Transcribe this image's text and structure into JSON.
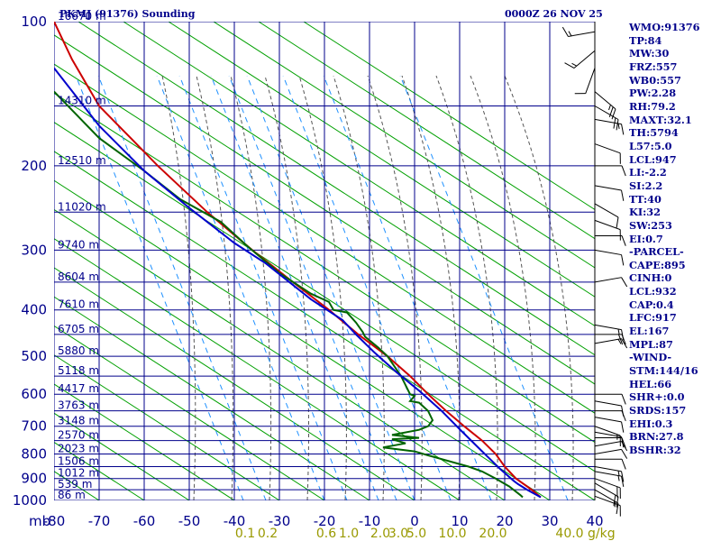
{
  "header": {
    "station_title": "PKMJ (91376) Sounding",
    "date_time": "0000Z 26 NOV 25"
  },
  "indices": [
    "WMO:91376",
    "TP:84",
    "MW:30",
    "FRZ:557",
    "WB0:557",
    "PW:2.28",
    "RH:79.2",
    "MAXT:32.1",
    "TH:5794",
    "L57:5.0",
    "LCL:947",
    "LI:-2.2",
    "SI:2.2",
    "TT:40",
    "KI:32",
    "SW:253",
    "EI:0.7",
    "-PARCEL-",
    "CAPE:895",
    "CINH:0",
    "LCL:932",
    "CAP:0.4",
    "LFC:917",
    "EL:167",
    "MPL:87",
    "-WIND-",
    "STM:144/16",
    "HEL:66",
    "SHR+:0.0",
    "SRDS:157",
    "EHI:0.3",
    "BRN:27.8",
    "BSHR:32"
  ],
  "colors": {
    "grid": "#00008b",
    "dry_adiabat": "#00a000",
    "moist_adiabat": "#555555",
    "mixing_ratio": "#1e90ff",
    "temperature": "#cc0000",
    "dewpoint": "#006400",
    "parcel": "#0000cc",
    "mixing_label": "#999900",
    "wind": "#000000"
  },
  "chart_data": {
    "type": "line",
    "xlim": [
      -80,
      40
    ],
    "ylim": [
      1000,
      100
    ],
    "y_scale": "log",
    "x_ticks": [
      "-80",
      "-70",
      "-60",
      "-50",
      "-40",
      "-30",
      "-20",
      "-10",
      "0",
      "10",
      "20",
      "30",
      "40"
    ],
    "y_ticks": [
      100,
      200,
      300,
      400,
      500,
      600,
      700,
      800,
      900,
      1000
    ],
    "y_tick_labels": [
      "100",
      "200",
      "300",
      "400",
      "500",
      "600",
      "700",
      "800",
      "900",
      "1000"
    ],
    "corner_label": "mb",
    "height_labels": [
      {
        "p": 100,
        "label": "16670 m"
      },
      {
        "p": 150,
        "label": "14310 m"
      },
      {
        "p": 200,
        "label": "12510 m"
      },
      {
        "p": 250,
        "label": "11020 m"
      },
      {
        "p": 300,
        "label": "9740 m"
      },
      {
        "p": 350,
        "label": "8604 m"
      },
      {
        "p": 400,
        "label": "7610 m"
      },
      {
        "p": 450,
        "label": "6705 m"
      },
      {
        "p": 500,
        "label": "5880 m"
      },
      {
        "p": 550,
        "label": "5118 m"
      },
      {
        "p": 600,
        "label": "4417 m"
      },
      {
        "p": 650,
        "label": "3763 m"
      },
      {
        "p": 700,
        "label": "3148 m"
      },
      {
        "p": 750,
        "label": "2570 m"
      },
      {
        "p": 800,
        "label": "2023 m"
      },
      {
        "p": 850,
        "label": "1506 m"
      },
      {
        "p": 900,
        "label": "1012 m"
      },
      {
        "p": 950,
        "label": "539 m"
      },
      {
        "p": 1000,
        "label": "86 m"
      }
    ],
    "mixing_ratio_labels": [
      {
        "x": -40,
        "label": "0.1"
      },
      {
        "x": -35,
        "label": "0.2"
      },
      {
        "x": -22,
        "label": "0.6"
      },
      {
        "x": -17,
        "label": "1.0"
      },
      {
        "x": -10,
        "label": "2.0"
      },
      {
        "x": -6,
        "label": "3.0"
      },
      {
        "x": -2,
        "label": "5.0"
      },
      {
        "x": 6,
        "label": "10.0"
      },
      {
        "x": 15,
        "label": "20.0"
      },
      {
        "x": 32,
        "label": "40.0"
      }
    ],
    "mixing_ratio_unit": "g/kg",
    "series": [
      {
        "key": "temperature",
        "points": [
          [
            -80,
            100
          ],
          [
            -76,
            120
          ],
          [
            -70,
            150
          ],
          [
            -63,
            175
          ],
          [
            -57,
            200
          ],
          [
            -46,
            250
          ],
          [
            -36,
            300
          ],
          [
            -27,
            350
          ],
          [
            -19,
            400
          ],
          [
            -12.5,
            450
          ],
          [
            -6,
            500
          ],
          [
            -1,
            550
          ],
          [
            3,
            600
          ],
          [
            7,
            650
          ],
          [
            11,
            700
          ],
          [
            15,
            750
          ],
          [
            18,
            800
          ],
          [
            20,
            850
          ],
          [
            22.5,
            900
          ],
          [
            26,
            950
          ],
          [
            28,
            985
          ]
        ]
      },
      {
        "key": "dewpoint",
        "points": [
          [
            -80,
            140
          ],
          [
            -70,
            175
          ],
          [
            -60,
            205
          ],
          [
            -52,
            235
          ],
          [
            -43,
            262
          ],
          [
            -37,
            295
          ],
          [
            -30,
            335
          ],
          [
            -23,
            370
          ],
          [
            -19,
            385
          ],
          [
            -18,
            400
          ],
          [
            -15,
            405
          ],
          [
            -13,
            425
          ],
          [
            -11.5,
            445
          ],
          [
            -11,
            455
          ],
          [
            -8,
            480
          ],
          [
            -6,
            500
          ],
          [
            -3,
            550
          ],
          [
            -1,
            600
          ],
          [
            0,
            605
          ],
          [
            -1,
            620
          ],
          [
            1,
            625
          ],
          [
            3,
            650
          ],
          [
            4,
            680
          ],
          [
            3,
            700
          ],
          [
            1,
            712
          ],
          [
            -5,
            730
          ],
          [
            -2,
            735
          ],
          [
            1,
            740
          ],
          [
            -5,
            745
          ],
          [
            -2,
            760
          ],
          [
            -7,
            775
          ],
          [
            0,
            790
          ],
          [
            3,
            805
          ],
          [
            12,
            850
          ],
          [
            15,
            870
          ],
          [
            18,
            900
          ],
          [
            21,
            935
          ],
          [
            23.5,
            975
          ],
          [
            24,
            985
          ]
        ]
      },
      {
        "key": "parcel",
        "points": [
          [
            28,
            985
          ],
          [
            25,
            950
          ],
          [
            23,
            925
          ],
          [
            22,
            910
          ],
          [
            19,
            860
          ],
          [
            15,
            790
          ],
          [
            10,
            710
          ],
          [
            6,
            650
          ],
          [
            1,
            590
          ],
          [
            -4,
            540
          ],
          [
            -9,
            490
          ],
          [
            -13,
            450
          ],
          [
            -16,
            420
          ],
          [
            -23,
            380
          ],
          [
            -33,
            320
          ],
          [
            -40,
            290
          ],
          [
            -50,
            245
          ],
          [
            -60,
            205
          ],
          [
            -70,
            165
          ],
          [
            -80,
            125
          ]
        ]
      }
    ],
    "wind_staff_x": 660,
    "winds": [
      {
        "p": 980,
        "dir": 110,
        "spd": 10
      },
      {
        "p": 950,
        "dir": 120,
        "spd": 15
      },
      {
        "p": 920,
        "dir": 120,
        "spd": 20
      },
      {
        "p": 900,
        "dir": 110,
        "spd": 20
      },
      {
        "p": 870,
        "dir": 100,
        "spd": 15
      },
      {
        "p": 850,
        "dir": 100,
        "spd": 15
      },
      {
        "p": 820,
        "dir": 90,
        "spd": 10
      },
      {
        "p": 800,
        "dir": 80,
        "spd": 10
      },
      {
        "p": 770,
        "dir": 80,
        "spd": 10
      },
      {
        "p": 740,
        "dir": 90,
        "spd": 10
      },
      {
        "p": 720,
        "dir": 100,
        "spd": 10
      },
      {
        "p": 700,
        "dir": 110,
        "spd": 15
      },
      {
        "p": 670,
        "dir": 100,
        "spd": 10
      },
      {
        "p": 650,
        "dir": 90,
        "spd": 10
      },
      {
        "p": 620,
        "dir": 100,
        "spd": 10
      },
      {
        "p": 600,
        "dir": 90,
        "spd": 10
      },
      {
        "p": 470,
        "dir": 80,
        "spd": 15
      },
      {
        "p": 450,
        "dir": 90,
        "spd": 20
      },
      {
        "p": 430,
        "dir": 100,
        "spd": 15
      },
      {
        "p": 350,
        "dir": 80,
        "spd": 10
      },
      {
        "p": 300,
        "dir": 100,
        "spd": 10
      },
      {
        "p": 280,
        "dir": 90,
        "spd": 10
      },
      {
        "p": 260,
        "dir": 110,
        "spd": 10
      },
      {
        "p": 240,
        "dir": 120,
        "spd": 10
      },
      {
        "p": 220,
        "dir": 100,
        "spd": 10
      },
      {
        "p": 200,
        "dir": 90,
        "spd": 10
      },
      {
        "p": 180,
        "dir": 110,
        "spd": 10
      },
      {
        "p": 160,
        "dir": 100,
        "spd": 15
      },
      {
        "p": 150,
        "dir": 120,
        "spd": 20
      },
      {
        "p": 140,
        "dir": 130,
        "spd": 25
      },
      {
        "p": 125,
        "dir": 200,
        "spd": 10
      },
      {
        "p": 115,
        "dir": 230,
        "spd": 15
      },
      {
        "p": 105,
        "dir": 260,
        "spd": 15
      }
    ]
  }
}
